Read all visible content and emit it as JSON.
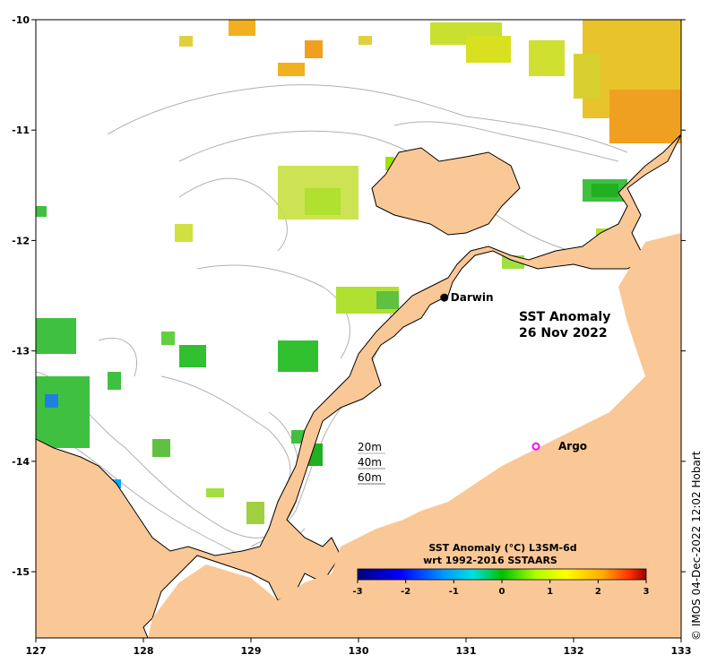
{
  "title_line1": "SST Anomaly",
  "title_line2": "26 Nov 2022",
  "credit": "© IMOS 04-Dec-2022 12:02 Hobart",
  "axes": {
    "x_ticks": [
      "127",
      "128",
      "129",
      "130",
      "131",
      "132",
      "133"
    ],
    "y_ticks": [
      "-10",
      "-11",
      "-12",
      "-13",
      "-14",
      "-15"
    ],
    "lon_range": [
      127,
      133
    ],
    "lat_range": [
      -15.6,
      -10
    ]
  },
  "places": {
    "darwin": {
      "label": "Darwin",
      "lon": 130.84,
      "lat": -12.46
    },
    "argo": {
      "label": "Argo",
      "lon": 131.5,
      "lat": -13.8
    }
  },
  "depth_legend": [
    "20m",
    "40m",
    "60m"
  ],
  "colorbar": {
    "title_line1": "SST Anomaly (°C) L3SM-6d",
    "title_line2": "wrt 1992-2016 SSTAARS",
    "ticks": [
      "-3",
      "-2",
      "-1",
      "0",
      "1",
      "2",
      "3"
    ],
    "range": [
      -3,
      3
    ]
  },
  "colors": {
    "land": "#fac896",
    "ocean": "#ffffff",
    "contour": "#b0b0b0",
    "coast": "#000000",
    "argo": "#ff00ff"
  }
}
